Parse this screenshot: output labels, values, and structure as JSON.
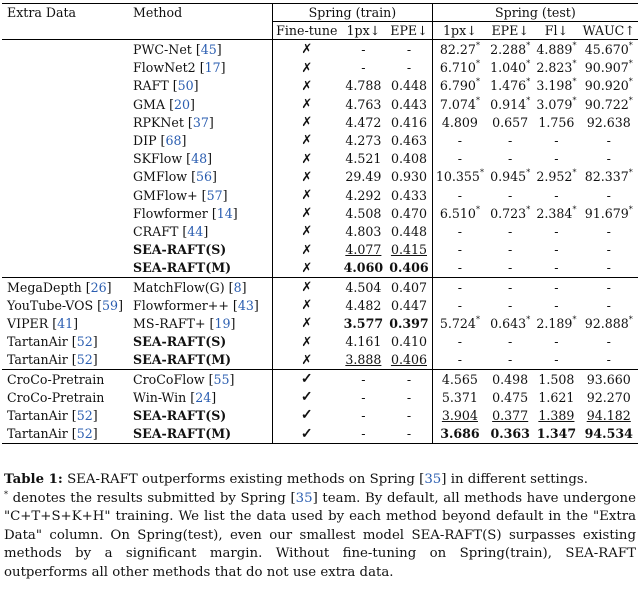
{
  "headers": {
    "extra_data": "Extra Data",
    "method": "Method",
    "train_group": "Spring (train)",
    "test_group": "Spring (test)",
    "finetune": "Fine-tune",
    "train_1px": "1px↓",
    "train_epe": "EPE↓",
    "test_1px": "1px↓",
    "test_epe": "EPE↓",
    "test_fl": "Fl↓",
    "test_wauc": "WAUC↑"
  },
  "groups": [
    {
      "rows": [
        {
          "extra": "",
          "method": "PWC-Net",
          "ref": "45",
          "ft": "✗",
          "t1px": "-",
          "tepe": "-",
          "s1px": "82.27*",
          "sepe": "2.288*",
          "sfl": "4.889*",
          "swauc": "45.670*"
        },
        {
          "extra": "",
          "method": "FlowNet2",
          "ref": "17",
          "ft": "✗",
          "t1px": "-",
          "tepe": "-",
          "s1px": "6.710*",
          "sepe": "1.040*",
          "sfl": "2.823*",
          "swauc": "90.907*"
        },
        {
          "extra": "",
          "method": "RAFT",
          "ref": "50",
          "ft": "✗",
          "t1px": "4.788",
          "tepe": "0.448",
          "s1px": "6.790*",
          "sepe": "1.476*",
          "sfl": "3.198*",
          "swauc": "90.920*"
        },
        {
          "extra": "",
          "method": "GMA",
          "ref": "20",
          "ft": "✗",
          "t1px": "4.763",
          "tepe": "0.443",
          "s1px": "7.074*",
          "sepe": "0.914*",
          "sfl": "3.079*",
          "swauc": "90.722*"
        },
        {
          "extra": "",
          "method": "RPKNet",
          "ref": "37",
          "ft": "✗",
          "t1px": "4.472",
          "tepe": "0.416",
          "s1px": "4.809",
          "sepe": "0.657",
          "sfl": "1.756",
          "swauc": "92.638"
        },
        {
          "extra": "",
          "method": "DIP",
          "ref": "68",
          "ft": "✗",
          "t1px": "4.273",
          "tepe": "0.463",
          "s1px": "-",
          "sepe": "-",
          "sfl": "-",
          "swauc": "-"
        },
        {
          "extra": "",
          "method": "SKFlow",
          "ref": "48",
          "ft": "✗",
          "t1px": "4.521",
          "tepe": "0.408",
          "s1px": "-",
          "sepe": "-",
          "sfl": "-",
          "swauc": "-"
        },
        {
          "extra": "",
          "method": "GMFlow",
          "ref": "56",
          "ft": "✗",
          "t1px": "29.49",
          "tepe": "0.930",
          "s1px": "10.355*",
          "sepe": "0.945*",
          "sfl": "2.952*",
          "swauc": "82.337*"
        },
        {
          "extra": "",
          "method": "GMFlow+",
          "ref": "57",
          "ft": "✗",
          "t1px": "4.292",
          "tepe": "0.433",
          "s1px": "-",
          "sepe": "-",
          "sfl": "-",
          "swauc": "-"
        },
        {
          "extra": "",
          "method": "Flowformer",
          "ref": "14",
          "ft": "✗",
          "t1px": "4.508",
          "tepe": "0.470",
          "s1px": "6.510*",
          "sepe": "0.723*",
          "sfl": "2.384*",
          "swauc": "91.679*"
        },
        {
          "extra": "",
          "method": "CRAFT",
          "ref": "44",
          "ft": "✗",
          "t1px": "4.803",
          "tepe": "0.448",
          "s1px": "-",
          "sepe": "-",
          "sfl": "-",
          "swauc": "-"
        },
        {
          "extra": "",
          "method": "SEA-RAFT(S)",
          "ref": "",
          "bold": true,
          "ft": "✗",
          "t1px": "4.077",
          "tepe": "0.415",
          "ul": [
            "t1px",
            "tepe"
          ],
          "s1px": "-",
          "sepe": "-",
          "sfl": "-",
          "swauc": "-"
        },
        {
          "extra": "",
          "method": "SEA-RAFT(M)",
          "ref": "",
          "bold": true,
          "ft": "✗",
          "t1px": "4.060",
          "tepe": "0.406",
          "bd": [
            "t1px",
            "tepe"
          ],
          "s1px": "-",
          "sepe": "-",
          "sfl": "-",
          "swauc": "-"
        }
      ]
    },
    {
      "rows": [
        {
          "extra": "MegaDepth",
          "extraref": "26",
          "method": "MatchFlow(G)",
          "ref": "8",
          "ft": "✗",
          "t1px": "4.504",
          "tepe": "0.407",
          "s1px": "-",
          "sepe": "-",
          "sfl": "-",
          "swauc": "-"
        },
        {
          "extra": "YouTube-VOS",
          "extraref": "59",
          "method": "Flowformer++",
          "ref": "43",
          "ft": "✗",
          "t1px": "4.482",
          "tepe": "0.447",
          "s1px": "-",
          "sepe": "-",
          "sfl": "-",
          "swauc": "-"
        },
        {
          "extra": "VIPER",
          "extraref": "41",
          "method": "MS-RAFT+",
          "ref": "19",
          "ft": "✗",
          "t1px": "3.577",
          "tepe": "0.397",
          "bd": [
            "t1px",
            "tepe"
          ],
          "s1px": "5.724*",
          "sepe": "0.643*",
          "sfl": "2.189*",
          "swauc": "92.888*"
        },
        {
          "extra": "TartanAir",
          "extraref": "52",
          "method": "SEA-RAFT(S)",
          "ref": "",
          "bold": true,
          "ft": "✗",
          "t1px": "4.161",
          "tepe": "0.410",
          "s1px": "-",
          "sepe": "-",
          "sfl": "-",
          "swauc": "-"
        },
        {
          "extra": "TartanAir",
          "extraref": "52",
          "method": "SEA-RAFT(M)",
          "ref": "",
          "bold": true,
          "ft": "✗",
          "t1px": "3.888",
          "tepe": "0.406",
          "ul": [
            "t1px",
            "tepe"
          ],
          "s1px": "-",
          "sepe": "-",
          "sfl": "-",
          "swauc": "-"
        }
      ]
    },
    {
      "rows": [
        {
          "extra": "CroCo-Pretrain",
          "extraref": "",
          "method": "CroCoFlow",
          "ref": "55",
          "ft": "✓",
          "t1px": "-",
          "tepe": "-",
          "s1px": "4.565",
          "sepe": "0.498",
          "sfl": "1.508",
          "swauc": "93.660"
        },
        {
          "extra": "CroCo-Pretrain",
          "extraref": "",
          "method": "Win-Win",
          "ref": "24",
          "ft": "✓",
          "t1px": "-",
          "tepe": "-",
          "s1px": "5.371",
          "sepe": "0.475",
          "sfl": "1.621",
          "swauc": "92.270"
        },
        {
          "extra": "TartanAir",
          "extraref": "52",
          "method": "SEA-RAFT(S)",
          "ref": "",
          "bold": true,
          "ft": "✓",
          "t1px": "-",
          "tepe": "-",
          "s1px": "3.904",
          "sepe": "0.377",
          "sfl": "1.389",
          "swauc": "94.182",
          "ul": [
            "s1px",
            "sepe",
            "sfl",
            "swauc"
          ]
        },
        {
          "extra": "TartanAir",
          "extraref": "52",
          "method": "SEA-RAFT(M)",
          "ref": "",
          "bold": true,
          "ft": "✓",
          "t1px": "-",
          "tepe": "-",
          "s1px": "3.686",
          "sepe": "0.363",
          "sfl": "1.347",
          "swauc": "94.534",
          "bd": [
            "s1px",
            "sepe",
            "sfl",
            "swauc"
          ]
        }
      ]
    }
  ],
  "caption": {
    "label": "Table 1:",
    "seg1": " SEA-RAFT outperforms existing methods on Spring ",
    "ref1": "35",
    "seg2": " in different settings.",
    "seg3": " denotes the results submitted by Spring ",
    "ref2": "35",
    "seg4": " team. By default, all methods have undergone \"C+T+S+K+H\" training. We list the data used by each method beyond default in the \"Extra Data\" column. On Spring(test), even our smallest model SEA-RAFT(S) surpasses existing methods by a significant margin. Without fine-tuning on Spring(train), SEA-RAFT outperforms all other methods that do not use extra data."
  }
}
